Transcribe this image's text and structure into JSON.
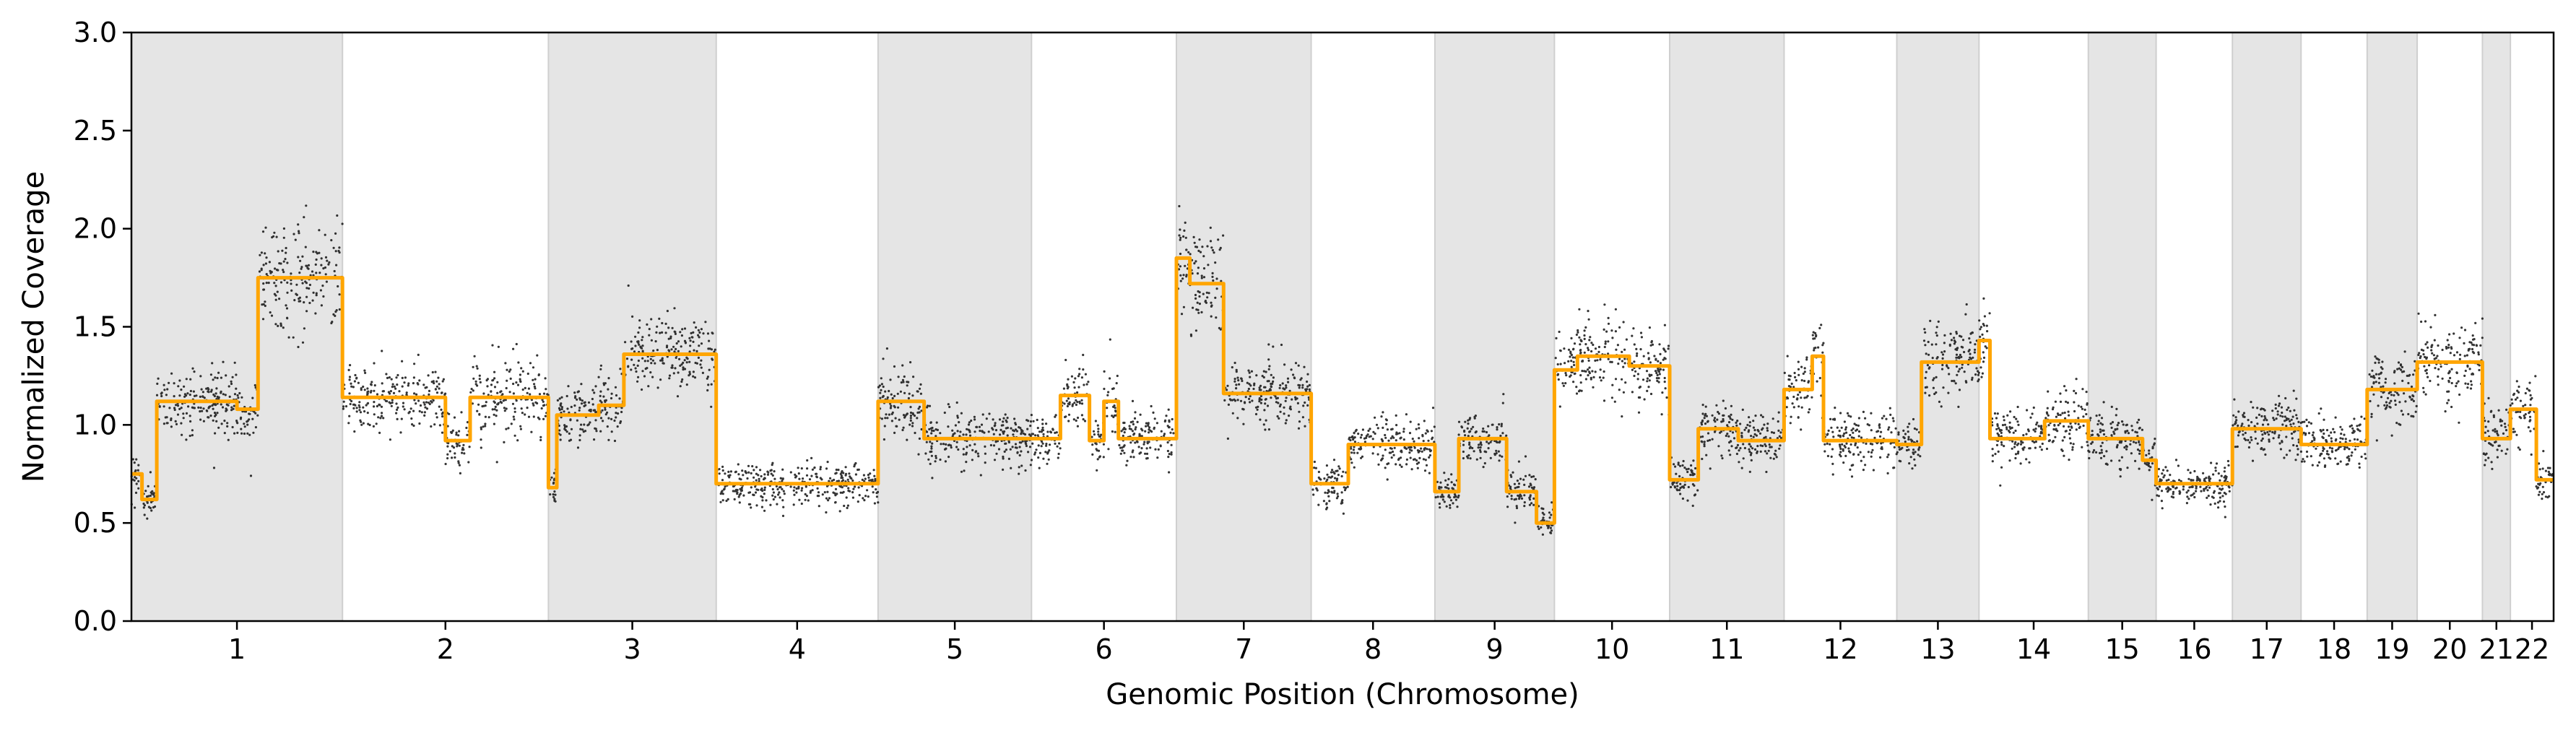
{
  "chart_data": {
    "type": "scatter",
    "xlabel": "Genomic Position (Chromosome)",
    "ylabel": "Normalized Coverage",
    "ylim": [
      0,
      3.0
    ],
    "yticks": [
      "0.0",
      "0.5",
      "1.0",
      "1.5",
      "2.0",
      "2.5",
      "3.0"
    ],
    "grid": false,
    "legend": "none",
    "colors": {
      "shade": "#e5e5e5",
      "shade_border": "#cfcfcf",
      "points": "#111111",
      "segment_line": "#FFA500"
    },
    "chromosomes": [
      {
        "label": "1",
        "size": 249,
        "shaded": true
      },
      {
        "label": "2",
        "size": 243,
        "shaded": false
      },
      {
        "label": "3",
        "size": 198,
        "shaded": true
      },
      {
        "label": "4",
        "size": 191,
        "shaded": false
      },
      {
        "label": "5",
        "size": 181,
        "shaded": true
      },
      {
        "label": "6",
        "size": 171,
        "shaded": false
      },
      {
        "label": "7",
        "size": 159,
        "shaded": true
      },
      {
        "label": "8",
        "size": 146,
        "shaded": false
      },
      {
        "label": "9",
        "size": 141,
        "shaded": true
      },
      {
        "label": "10",
        "size": 136,
        "shaded": false
      },
      {
        "label": "11",
        "size": 135,
        "shaded": true
      },
      {
        "label": "12",
        "size": 133,
        "shaded": false
      },
      {
        "label": "13",
        "size": 97,
        "shaded": true
      },
      {
        "label": "14",
        "size": 129,
        "shaded": false
      },
      {
        "label": "15",
        "size": 80,
        "shaded": true
      },
      {
        "label": "16",
        "size": 90,
        "shaded": false
      },
      {
        "label": "17",
        "size": 81,
        "shaded": true
      },
      {
        "label": "18",
        "size": 78,
        "shaded": false
      },
      {
        "label": "19",
        "size": 59,
        "shaded": true
      },
      {
        "label": "20",
        "size": 77,
        "shaded": false
      },
      {
        "label": "21",
        "size": 33,
        "shaded": true
      },
      {
        "label": "22",
        "size": 51,
        "shaded": false
      }
    ],
    "series": [
      {
        "kind": "segments",
        "segments": [
          {
            "chr": "1",
            "start": 0.0,
            "end": 0.05,
            "value": 0.75
          },
          {
            "chr": "1",
            "start": 0.05,
            "end": 0.12,
            "value": 0.62
          },
          {
            "chr": "1",
            "start": 0.12,
            "end": 0.5,
            "value": 1.12
          },
          {
            "chr": "1",
            "start": 0.5,
            "end": 0.6,
            "value": 1.08
          },
          {
            "chr": "1",
            "start": 0.6,
            "end": 1.0,
            "value": 1.75
          },
          {
            "chr": "2",
            "start": 0.0,
            "end": 0.5,
            "value": 1.14
          },
          {
            "chr": "2",
            "start": 0.5,
            "end": 0.62,
            "value": 0.92
          },
          {
            "chr": "2",
            "start": 0.62,
            "end": 1.0,
            "value": 1.14
          },
          {
            "chr": "3",
            "start": 0.0,
            "end": 0.05,
            "value": 0.68
          },
          {
            "chr": "3",
            "start": 0.05,
            "end": 0.3,
            "value": 1.05
          },
          {
            "chr": "3",
            "start": 0.3,
            "end": 0.45,
            "value": 1.1
          },
          {
            "chr": "3",
            "start": 0.45,
            "end": 1.0,
            "value": 1.36
          },
          {
            "chr": "4",
            "start": 0.0,
            "end": 1.0,
            "value": 0.7
          },
          {
            "chr": "5",
            "start": 0.0,
            "end": 0.3,
            "value": 1.12
          },
          {
            "chr": "5",
            "start": 0.3,
            "end": 1.0,
            "value": 0.93
          },
          {
            "chr": "6",
            "start": 0.0,
            "end": 0.2,
            "value": 0.93
          },
          {
            "chr": "6",
            "start": 0.2,
            "end": 0.4,
            "value": 1.15
          },
          {
            "chr": "6",
            "start": 0.4,
            "end": 0.5,
            "value": 0.92
          },
          {
            "chr": "6",
            "start": 0.5,
            "end": 0.6,
            "value": 1.12
          },
          {
            "chr": "6",
            "start": 0.6,
            "end": 1.0,
            "value": 0.93
          },
          {
            "chr": "7",
            "start": 0.0,
            "end": 0.1,
            "value": 1.85
          },
          {
            "chr": "7",
            "start": 0.1,
            "end": 0.35,
            "value": 1.72
          },
          {
            "chr": "7",
            "start": 0.35,
            "end": 1.0,
            "value": 1.16
          },
          {
            "chr": "8",
            "start": 0.0,
            "end": 0.3,
            "value": 0.7
          },
          {
            "chr": "8",
            "start": 0.3,
            "end": 1.0,
            "value": 0.9
          },
          {
            "chr": "9",
            "start": 0.0,
            "end": 0.2,
            "value": 0.66
          },
          {
            "chr": "9",
            "start": 0.2,
            "end": 0.6,
            "value": 0.93
          },
          {
            "chr": "9",
            "start": 0.6,
            "end": 0.85,
            "value": 0.66
          },
          {
            "chr": "9",
            "start": 0.85,
            "end": 1.0,
            "value": 0.5
          },
          {
            "chr": "10",
            "start": 0.0,
            "end": 0.2,
            "value": 1.28
          },
          {
            "chr": "10",
            "start": 0.2,
            "end": 0.65,
            "value": 1.35
          },
          {
            "chr": "10",
            "start": 0.65,
            "end": 1.0,
            "value": 1.3
          },
          {
            "chr": "11",
            "start": 0.0,
            "end": 0.25,
            "value": 0.72
          },
          {
            "chr": "11",
            "start": 0.25,
            "end": 0.6,
            "value": 0.98
          },
          {
            "chr": "11",
            "start": 0.6,
            "end": 1.0,
            "value": 0.92
          },
          {
            "chr": "12",
            "start": 0.0,
            "end": 0.25,
            "value": 1.18
          },
          {
            "chr": "12",
            "start": 0.25,
            "end": 0.35,
            "value": 1.35
          },
          {
            "chr": "12",
            "start": 0.35,
            "end": 1.0,
            "value": 0.92
          },
          {
            "chr": "13",
            "start": 0.0,
            "end": 0.3,
            "value": 0.9
          },
          {
            "chr": "13",
            "start": 0.3,
            "end": 1.0,
            "value": 1.32
          },
          {
            "chr": "14",
            "start": 0.0,
            "end": 0.1,
            "value": 1.43
          },
          {
            "chr": "14",
            "start": 0.1,
            "end": 0.6,
            "value": 0.93
          },
          {
            "chr": "14",
            "start": 0.6,
            "end": 1.0,
            "value": 1.02
          },
          {
            "chr": "15",
            "start": 0.0,
            "end": 0.8,
            "value": 0.93
          },
          {
            "chr": "15",
            "start": 0.8,
            "end": 1.0,
            "value": 0.82
          },
          {
            "chr": "16",
            "start": 0.0,
            "end": 1.0,
            "value": 0.7
          },
          {
            "chr": "17",
            "start": 0.0,
            "end": 1.0,
            "value": 0.98
          },
          {
            "chr": "18",
            "start": 0.0,
            "end": 1.0,
            "value": 0.9
          },
          {
            "chr": "19",
            "start": 0.0,
            "end": 1.0,
            "value": 1.18
          },
          {
            "chr": "20",
            "start": 0.0,
            "end": 1.0,
            "value": 1.32
          },
          {
            "chr": "21",
            "start": 0.0,
            "end": 1.0,
            "value": 0.93
          },
          {
            "chr": "22",
            "start": 0.0,
            "end": 0.6,
            "value": 1.08
          },
          {
            "chr": "22",
            "start": 0.6,
            "end": 1.0,
            "value": 0.72
          }
        ]
      }
    ]
  }
}
